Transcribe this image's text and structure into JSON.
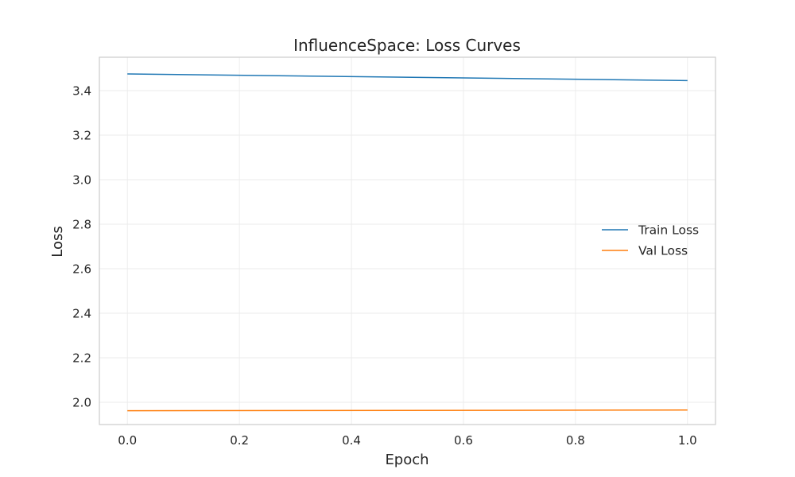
{
  "chart_data": {
    "type": "line",
    "title": "InfluenceSpace: Loss Curves",
    "xlabel": "Epoch",
    "ylabel": "Loss",
    "xlim": [
      -0.05,
      1.05
    ],
    "ylim": [
      1.9,
      3.55
    ],
    "xticks": [
      0.0,
      0.2,
      0.4,
      0.6,
      0.8,
      1.0
    ],
    "xtick_labels": [
      "0.0",
      "0.2",
      "0.4",
      "0.6",
      "0.8",
      "1.0"
    ],
    "yticks": [
      2.0,
      2.2,
      2.4,
      2.6,
      2.8,
      3.0,
      3.2,
      3.4
    ],
    "ytick_labels": [
      "2.0",
      "2.2",
      "2.4",
      "2.6",
      "2.8",
      "3.0",
      "3.2",
      "3.4"
    ],
    "grid": true,
    "legend_position": "center-right",
    "series": [
      {
        "name": "Train Loss",
        "color": "#1f77b4",
        "x": [
          0.0,
          1.0
        ],
        "y": [
          3.475,
          3.445
        ]
      },
      {
        "name": "Val Loss",
        "color": "#ff7f0e",
        "x": [
          0.0,
          1.0
        ],
        "y": [
          1.962,
          1.965
        ]
      }
    ]
  }
}
